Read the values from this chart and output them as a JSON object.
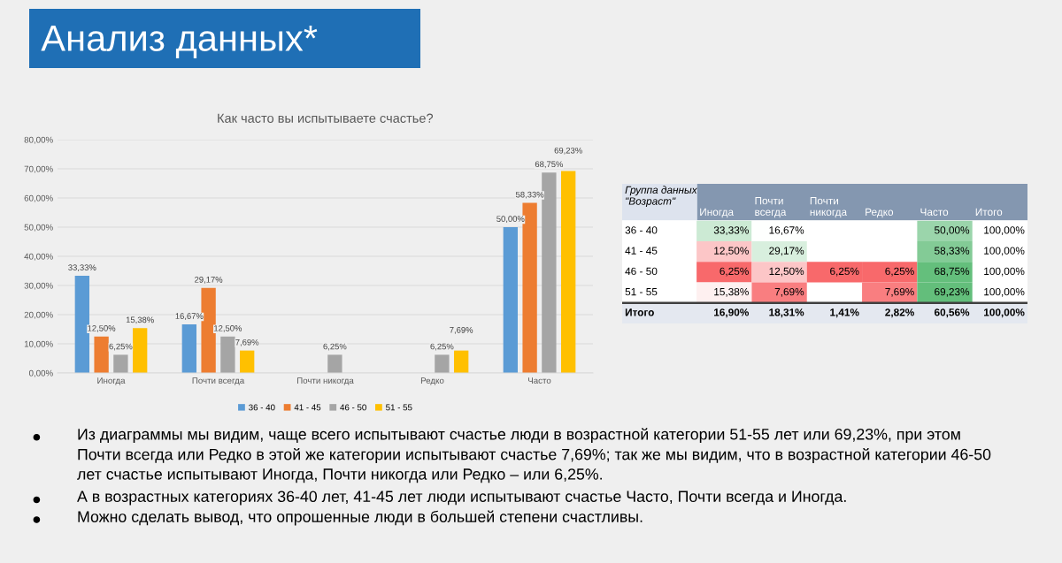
{
  "chart_data": [
    {
      "type": "other",
      "title": "Анализ данных*"
    },
    {
      "type": "bar",
      "title": "Как часто вы испытываете счастье?",
      "categories": [
        "Иногда",
        "Почти всегда",
        "Почти никогда",
        "Редко",
        "Часто"
      ],
      "series": [
        {
          "name": "36 - 40",
          "color": "#5b9bd5",
          "values": [
            33.33,
            16.67,
            null,
            null,
            50.0
          ],
          "value_labels": [
            "33,33%",
            "16,67%",
            null,
            null,
            "50,00%"
          ]
        },
        {
          "name": "41 - 45",
          "color": "#ed7d31",
          "values": [
            12.5,
            29.17,
            null,
            null,
            58.33
          ],
          "value_labels": [
            "12,50%",
            "29,17%",
            null,
            null,
            "58,33%"
          ]
        },
        {
          "name": "46 - 50",
          "color": "#a5a5a5",
          "values": [
            6.25,
            12.5,
            6.25,
            6.25,
            68.75
          ],
          "value_labels": [
            "6,25%",
            "12,50%",
            "6,25%",
            "6,25%",
            "68,75%"
          ]
        },
        {
          "name": "51 - 55",
          "color": "#ffc000",
          "values": [
            15.38,
            7.69,
            null,
            7.69,
            69.23
          ],
          "value_labels": [
            "15,38%",
            "7,69%",
            null,
            "7,69%",
            "69,23%"
          ]
        }
      ],
      "ylim": [
        0,
        80
      ],
      "yticks": [
        {
          "value": 0,
          "label": "0,00%"
        },
        {
          "value": 10,
          "label": "10,00%"
        },
        {
          "value": 20,
          "label": "20,00%"
        },
        {
          "value": 30,
          "label": "30,00%"
        },
        {
          "value": 40,
          "label": "40,00%"
        },
        {
          "value": 50,
          "label": "50,00%"
        },
        {
          "value": 60,
          "label": "60,00%"
        },
        {
          "value": 70,
          "label": "70,00%"
        },
        {
          "value": 80,
          "label": "80,00%"
        }
      ],
      "grid": "y",
      "legend": "bottom"
    },
    {
      "type": "heatmap",
      "ylabel": "Группа данных \"Возраст\"",
      "categories": [
        "Иногда",
        "Почти всегда",
        "Почти никогда",
        "Редко",
        "Часто",
        "Итого"
      ],
      "y_categories": [
        "36 - 40",
        "41 - 45",
        "46 - 50",
        "51 - 55",
        "Итого"
      ],
      "cells": [
        [
          33.33,
          16.67,
          null,
          null,
          50.0,
          100.0
        ],
        [
          12.5,
          29.17,
          null,
          null,
          58.33,
          100.0
        ],
        [
          6.25,
          12.5,
          6.25,
          6.25,
          68.75,
          100.0
        ],
        [
          15.38,
          7.69,
          null,
          7.69,
          69.23,
          100.0
        ],
        [
          16.9,
          18.31,
          1.41,
          2.82,
          60.56,
          100.0
        ]
      ],
      "cell_labels": [
        [
          "33,33%",
          "16,67%",
          null,
          null,
          "50,00%",
          "100,00%"
        ],
        [
          "12,50%",
          "29,17%",
          null,
          null,
          "58,33%",
          "100,00%"
        ],
        [
          "6,25%",
          "12,50%",
          "6,25%",
          "6,25%",
          "68,75%",
          "100,00%"
        ],
        [
          "15,38%",
          "7,69%",
          null,
          "7,69%",
          "69,23%",
          "100,00%"
        ],
        [
          "16,90%",
          "18,31%",
          "1,41%",
          "2,82%",
          "60,56%",
          "100,00%"
        ]
      ]
    },
    {
      "type": "other",
      "annotations": [
        "Из диаграммы мы видим, чаще всего испытывают счастье люди в возрастной категории 51-55 лет или 69,23%, при этом Почти всегда или Редко в этой же категории испытывают счастье 7,69%; так же мы видим, что в возрастной категории 46-50 лет счастье испытывают Иногда, Почти никогда или Редко – или 6,25%.",
        "А в возрастных категориях 36-40 лет, 41-45 лет люди испытывают счастье Часто, Почти всегда и Иногда.",
        "Можно сделать вывод, что опрошенные люди в большей степени счастливы."
      ]
    }
  ]
}
